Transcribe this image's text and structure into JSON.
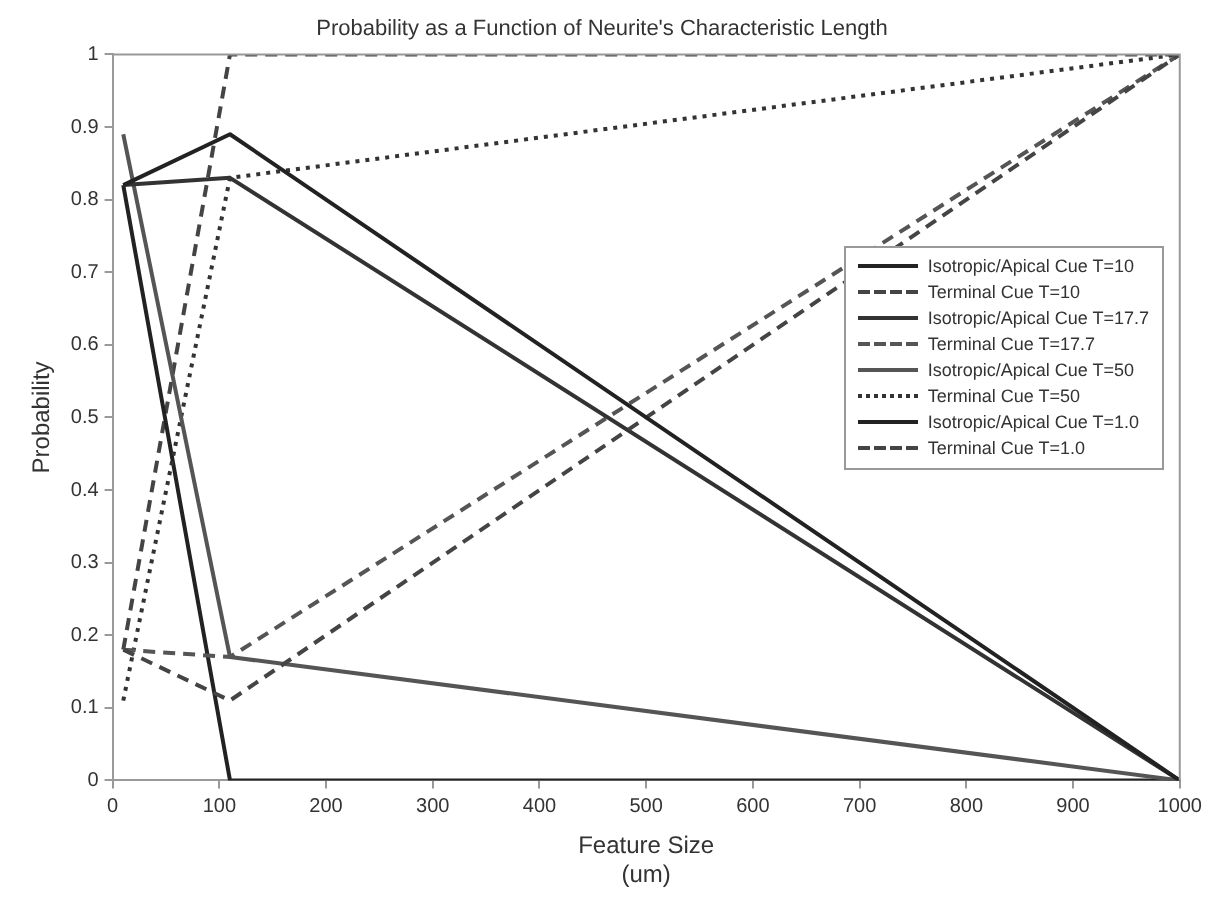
{
  "chart_data": {
    "type": "line",
    "title": "Probability as a Function of Neurite's Characteristic Length",
    "xlabel": "Feature Size\n(um)",
    "ylabel": "Probability",
    "x": [
      10,
      110,
      1000
    ],
    "series": [
      {
        "name": "Isotropic/Apical Cue T=10",
        "color": "#222222",
        "line_style": "solid",
        "values": [
          0.82,
          0.89,
          0
        ]
      },
      {
        "name": "Terminal Cue T=10",
        "color": "#444444",
        "line_style": "dashed",
        "values": [
          0.18,
          0.11,
          1
        ]
      },
      {
        "name": "Isotropic/Apical Cue T=17.7",
        "color": "#333333",
        "line_style": "solid",
        "values": [
          0.82,
          0.83,
          0
        ]
      },
      {
        "name": "Terminal Cue T=17.7",
        "color": "#555555",
        "line_style": "dashed",
        "values": [
          0.18,
          0.17,
          1
        ]
      },
      {
        "name": "Isotropic/Apical Cue T=50",
        "color": "#555555",
        "line_style": "solid",
        "values": [
          0.89,
          0.17,
          0
        ]
      },
      {
        "name": "Terminal Cue T=50",
        "color": "#333333",
        "line_style": "dotted",
        "values": [
          0.11,
          0.83,
          1
        ]
      },
      {
        "name": "Isotropic/Apical Cue T=1.0",
        "color": "#222222",
        "line_style": "solid",
        "values": [
          0.82,
          0,
          0
        ]
      },
      {
        "name": "Terminal Cue T=1.0",
        "color": "#444444",
        "line_style": "dashed",
        "values": [
          0.18,
          1,
          1
        ]
      }
    ],
    "xlim": [
      0,
      1000
    ],
    "xticks": [
      0,
      100,
      200,
      300,
      400,
      500,
      600,
      700,
      800,
      900,
      1000
    ],
    "ylim": [
      0,
      1
    ],
    "yticks": [
      0,
      0.1,
      0.2,
      0.3,
      0.4,
      0.5,
      0.6,
      0.7,
      0.8,
      0.9,
      1
    ],
    "grid": false,
    "legend": "right",
    "marker": "none"
  }
}
